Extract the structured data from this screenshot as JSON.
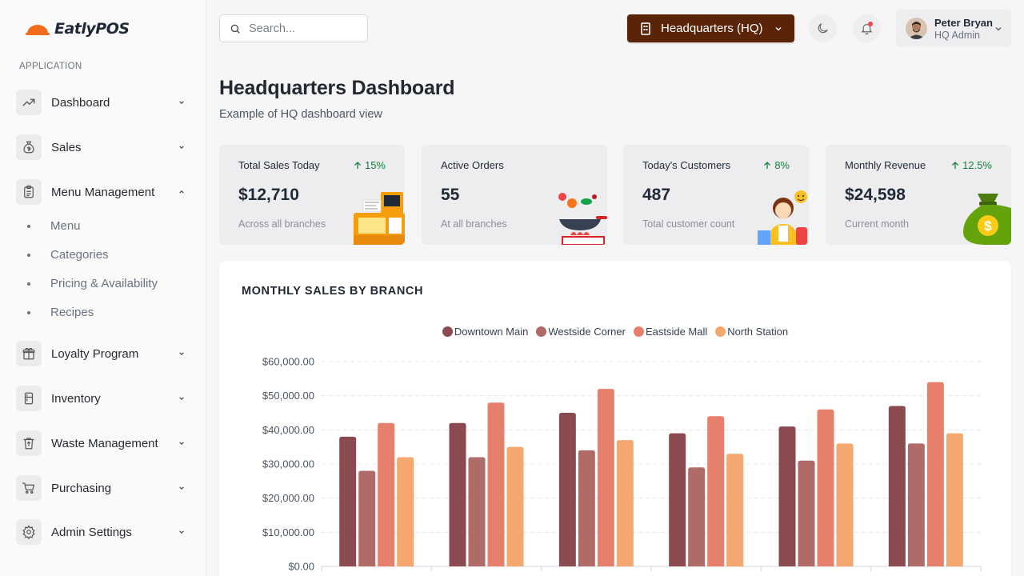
{
  "app": {
    "name": "EatlyPOS"
  },
  "sidebar": {
    "section_label": "APPLICATION",
    "items": [
      {
        "label": "Dashboard",
        "icon": "trending-up-icon",
        "expanded": false
      },
      {
        "label": "Sales",
        "icon": "money-bag-icon",
        "expanded": false
      },
      {
        "label": "Menu Management",
        "icon": "clipboard-icon",
        "expanded": true,
        "children": [
          "Menu",
          "Categories",
          "Pricing & Availability",
          "Recipes"
        ]
      },
      {
        "label": "Loyalty Program",
        "icon": "gift-icon",
        "expanded": false
      },
      {
        "label": "Inventory",
        "icon": "fridge-icon",
        "expanded": false
      },
      {
        "label": "Waste Management",
        "icon": "recycle-bin-icon",
        "expanded": false
      },
      {
        "label": "Purchasing",
        "icon": "cart-icon",
        "expanded": false
      },
      {
        "label": "Admin Settings",
        "icon": "gear-icon",
        "expanded": false
      }
    ]
  },
  "header": {
    "search_placeholder": "Search...",
    "branch_label": "Headquarters (HQ)",
    "user": {
      "name": "Peter Bryan",
      "role": "HQ Admin"
    },
    "notification_dot_color": "#ef4444"
  },
  "page": {
    "title": "Headquarters Dashboard",
    "subtitle": "Example of HQ dashboard view"
  },
  "stats": [
    {
      "title": "Total Sales Today",
      "change": "15%",
      "value": "$12,710",
      "note": "Across all branches",
      "illustration": "cash-register-icon"
    },
    {
      "title": "Active Orders",
      "change": "",
      "value": "55",
      "note": "At all branches",
      "illustration": "wok-cooking-icon"
    },
    {
      "title": "Today's Customers",
      "change": "8%",
      "value": "487",
      "note": "Total customer count",
      "illustration": "customer-icon"
    },
    {
      "title": "Monthly Revenue",
      "change": "12.5%",
      "value": "$24,598",
      "note": "Current month",
      "illustration": "money-bag-icon"
    }
  ],
  "colors": {
    "accent": "#5a2408",
    "positive": "#15803d",
    "series": [
      "#8b4a4f",
      "#b06a68",
      "#e6806d",
      "#f4a76e"
    ]
  },
  "chart_data": {
    "type": "bar",
    "title": "MONTHLY SALES BY BRANCH",
    "legend_position": "top-center",
    "grid": true,
    "ylim": [
      0,
      60000
    ],
    "yticks": [
      "$0.00",
      "$10,000.00",
      "$20,000.00",
      "$30,000.00",
      "$40,000.00",
      "$50,000.00",
      "$60,000.00"
    ],
    "categories": [
      "",
      "",
      "",
      "",
      "",
      ""
    ],
    "series": [
      {
        "name": "Downtown Main",
        "values": [
          38000,
          42000,
          45000,
          39000,
          41000,
          47000
        ]
      },
      {
        "name": "Westside Corner",
        "values": [
          28000,
          32000,
          34000,
          29000,
          31000,
          36000
        ]
      },
      {
        "name": "Eastside Mall",
        "values": [
          42000,
          48000,
          52000,
          44000,
          46000,
          54000
        ]
      },
      {
        "name": "North Station",
        "values": [
          32000,
          35000,
          37000,
          33000,
          36000,
          39000
        ]
      }
    ]
  }
}
